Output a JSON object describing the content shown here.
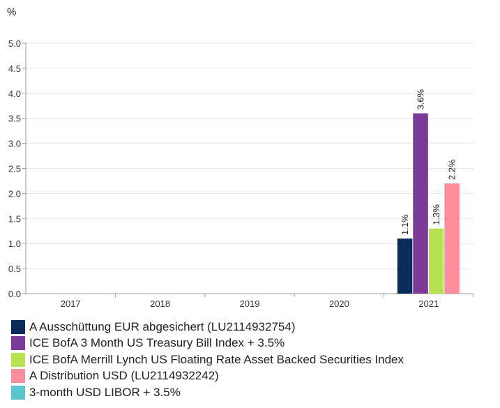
{
  "chart_data": {
    "type": "bar",
    "ylabel": "%",
    "categories": [
      "2017",
      "2018",
      "2019",
      "2020",
      "2021"
    ],
    "ylim": [
      0,
      5.0
    ],
    "yticks": [
      "0.0",
      "0.5",
      "1.0",
      "1.5",
      "2.0",
      "2.5",
      "3.0",
      "3.5",
      "4.0",
      "4.5",
      "5.0"
    ],
    "grid": true,
    "legend_position": "bottom",
    "series": [
      {
        "name": "A Ausschüttung EUR abgesichert (LU2114932754)",
        "color": "#0a2a5c",
        "values": [
          null,
          null,
          null,
          null,
          1.1
        ],
        "labels": [
          null,
          null,
          null,
          null,
          "1.1%"
        ]
      },
      {
        "name": "ICE BofA 3 Month US Treasury Bill Index + 3.5%",
        "color": "#7b3a96",
        "values": [
          null,
          null,
          null,
          null,
          3.6
        ],
        "labels": [
          null,
          null,
          null,
          null,
          "3.6%"
        ]
      },
      {
        "name": "ICE BofA Merrill Lynch US Floating Rate Asset Backed Securities Index",
        "color": "#b5e351",
        "values": [
          null,
          null,
          null,
          null,
          1.3
        ],
        "labels": [
          null,
          null,
          null,
          null,
          "1.3%"
        ]
      },
      {
        "name": "A Distribution USD (LU2114932242)",
        "color": "#fd8d9b",
        "values": [
          null,
          null,
          null,
          null,
          2.2
        ],
        "labels": [
          null,
          null,
          null,
          null,
          "2.2%"
        ]
      },
      {
        "name": "3-month USD LIBOR + 3.5%",
        "color": "#5cc6cf",
        "values": [
          null,
          null,
          null,
          null,
          null
        ],
        "labels": [
          null,
          null,
          null,
          null,
          null
        ]
      }
    ]
  }
}
